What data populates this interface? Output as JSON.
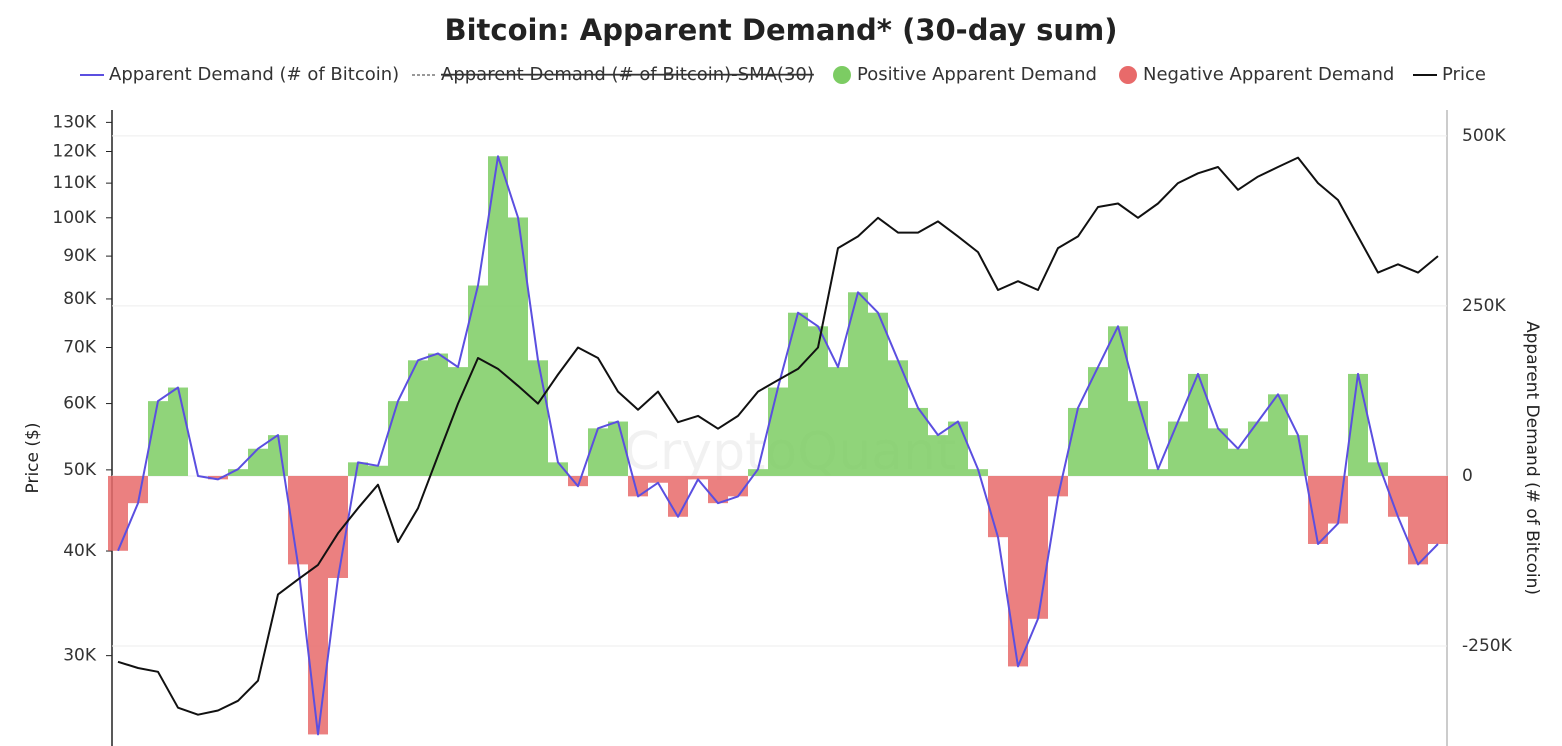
{
  "chart_data": {
    "type": "bar-line",
    "title": "Bitcoin: Apparent Demand* (30-day sum)",
    "watermark": "CryptoQuant",
    "ylabel": "Price ($)",
    "y2label": "Apparent Demand (# of Bitcoin)",
    "log_y": true,
    "grid": true,
    "ylim": [
      23400,
      134500
    ],
    "yticks": [
      {
        "value": 30000,
        "label": "30K"
      },
      {
        "value": 40000,
        "label": "40K"
      },
      {
        "value": 50000,
        "label": "50K"
      },
      {
        "value": 60000,
        "label": "60K"
      },
      {
        "value": 70000,
        "label": "70K"
      },
      {
        "value": 80000,
        "label": "80K"
      },
      {
        "value": 90000,
        "label": "90K"
      },
      {
        "value": 100000,
        "label": "100K"
      },
      {
        "value": 110000,
        "label": "110K"
      },
      {
        "value": 120000,
        "label": "120K"
      },
      {
        "value": 130000,
        "label": "130K"
      }
    ],
    "y2lim": [
      -397000,
      538000
    ],
    "y2ticks": [
      {
        "value": -250000,
        "label": "-250K"
      },
      0,
      {
        "value": 250000,
        "label": "250K"
      },
      {
        "value": 500000,
        "label": "500K"
      }
    ],
    "series": [
      {
        "name": "Apparent Demand (# of Bitcoin)",
        "color": "#5b4fe0",
        "axis": "y2",
        "values": [
          -110000,
          -40000,
          110000,
          130000,
          0,
          -5000,
          10000,
          40000,
          60000,
          -130000,
          -380000,
          -150000,
          20000,
          15000,
          110000,
          170000,
          180000,
          160000,
          280000,
          470000,
          380000,
          170000,
          20000,
          -15000,
          70000,
          80000,
          -30000,
          -10000,
          -60000,
          -5000,
          -40000,
          -30000,
          10000,
          130000,
          240000,
          220000,
          160000,
          270000,
          240000,
          170000,
          100000,
          60000,
          80000,
          10000,
          -90000,
          -280000,
          -210000,
          -30000,
          100000,
          160000,
          220000,
          110000,
          10000,
          80000,
          150000,
          70000,
          40000,
          80000,
          120000,
          60000,
          -100000,
          -70000,
          150000,
          20000,
          -60000,
          -130000,
          -100000
        ]
      },
      {
        "name": "Apparent Demand (# of Bitcoin)-SMA(30)",
        "color": "#999999",
        "hidden": true
      },
      {
        "name": "Positive Apparent Demand",
        "color": "#7ccc63"
      },
      {
        "name": "Negative Apparent Demand",
        "color": "#e86a6a"
      },
      {
        "name": "Price",
        "color": "#111111",
        "values": [
          29500,
          29000,
          28700,
          26000,
          25500,
          25800,
          26500,
          28000,
          35500,
          37000,
          38500,
          42000,
          45000,
          48000,
          41000,
          45000,
          52000,
          60000,
          68000,
          66000,
          63000,
          60000,
          65000,
          70000,
          68000,
          62000,
          59000,
          62000,
          57000,
          58000,
          56000,
          58000,
          62000,
          64000,
          66000,
          70000,
          92000,
          95000,
          100000,
          96000,
          96000,
          99000,
          95000,
          91000,
          82000,
          84000,
          82000,
          92000,
          95000,
          103000,
          104000,
          100000,
          104000,
          110000,
          113000,
          115000,
          108000,
          112000,
          115000,
          118000,
          110000,
          105000,
          95000,
          86000,
          88000,
          86000,
          90000
        ]
      }
    ]
  }
}
